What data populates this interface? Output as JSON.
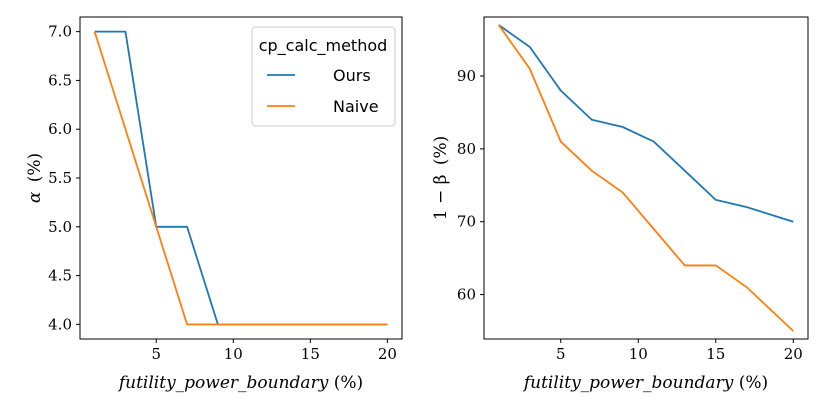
{
  "chart_data": [
    {
      "type": "line",
      "xlabel_var": "futility_power_boundary",
      "xlabel_unit": "(%)",
      "ylabel_var": "α",
      "ylabel_unit": "(%)",
      "xlim": [
        0.05,
        20.95
      ],
      "ylim": [
        3.85,
        7.15
      ],
      "xticks": [
        5,
        10,
        15,
        20
      ],
      "xtick_labels": [
        "5",
        "10",
        "15",
        "20"
      ],
      "yticks": [
        4.0,
        4.5,
        5.0,
        5.5,
        6.0,
        6.5,
        7.0
      ],
      "ytick_labels": [
        "4.0",
        "4.5",
        "5.0",
        "5.5",
        "6.0",
        "6.5",
        "7.0"
      ],
      "legend": {
        "title": "cp_calc_method",
        "position": "top-right",
        "entries": [
          "Ours",
          "Naive"
        ]
      },
      "series": [
        {
          "name": "Ours",
          "color": "#1f77b4",
          "x": [
            1,
            3,
            5,
            7,
            9,
            11,
            13,
            15,
            17,
            20
          ],
          "values": [
            7.0,
            7.0,
            5.0,
            5.0,
            4.0,
            4.0,
            4.0,
            4.0,
            4.0,
            4.0
          ]
        },
        {
          "name": "Naive",
          "color": "#ff7f0e",
          "x": [
            1,
            3,
            5,
            7,
            9,
            11,
            13,
            15,
            17,
            20
          ],
          "values": [
            7.0,
            6.0,
            5.0,
            4.0,
            4.0,
            4.0,
            4.0,
            4.0,
            4.0,
            4.0
          ]
        }
      ]
    },
    {
      "type": "line",
      "xlabel_var": "futility_power_boundary",
      "xlabel_unit": "(%)",
      "ylabel_var": "1 − β",
      "ylabel_unit": "(%)",
      "xlim": [
        0.05,
        20.95
      ],
      "ylim": [
        53.9,
        98.1
      ],
      "xticks": [
        5,
        10,
        15,
        20
      ],
      "xtick_labels": [
        "5",
        "10",
        "15",
        "20"
      ],
      "yticks": [
        60,
        70,
        80,
        90
      ],
      "ytick_labels": [
        "60",
        "70",
        "80",
        "90"
      ],
      "series": [
        {
          "name": "Ours",
          "color": "#1f77b4",
          "x": [
            1,
            3,
            5,
            7,
            9,
            11,
            13,
            15,
            17,
            20
          ],
          "values": [
            97,
            94,
            88,
            84,
            83,
            81,
            77,
            73,
            72,
            70
          ]
        },
        {
          "name": "Naive",
          "color": "#ff7f0e",
          "x": [
            1,
            3,
            5,
            7,
            9,
            11,
            13,
            15,
            17,
            20
          ],
          "values": [
            97,
            91,
            81,
            77,
            74,
            69,
            64,
            64,
            61,
            55
          ]
        }
      ]
    }
  ]
}
